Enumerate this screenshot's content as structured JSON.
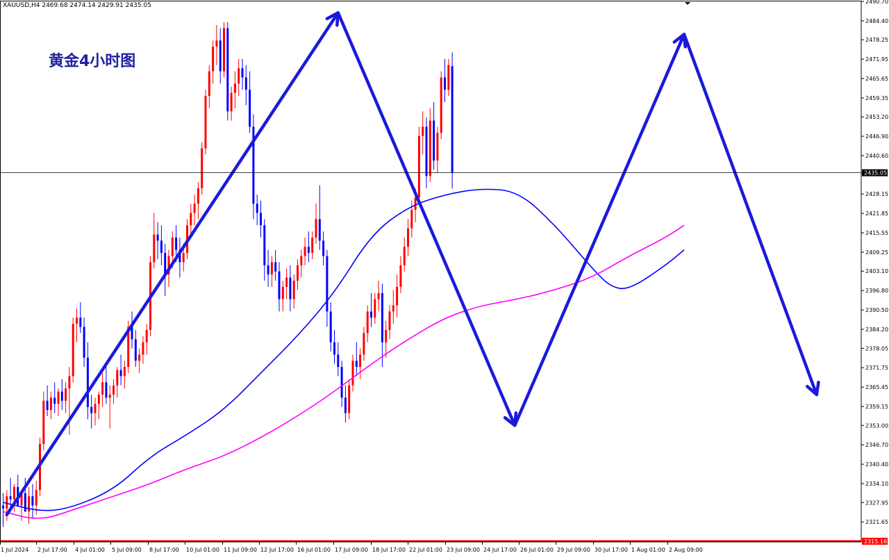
{
  "chart_data": {
    "type": "candlestick",
    "title": "XAUUSD,H4  2469.68 2474.14 2429.91 2435.05",
    "annotation": "黄金4小时图",
    "current_price_label": "2435.05",
    "bottom_price_label": "2315.16",
    "ylim": [
      2315.16,
      2490.7
    ],
    "y_ticks": [
      "2490.70",
      "2484.40",
      "2478.25",
      "2471.95",
      "2465.65",
      "2459.35",
      "2453.20",
      "2446.90",
      "2440.60",
      "2435.05",
      "2428.15",
      "2421.85",
      "2415.55",
      "2409.25",
      "2403.10",
      "2396.80",
      "2390.50",
      "2384.20",
      "2378.05",
      "2371.75",
      "2365.45",
      "2359.15",
      "2353.00",
      "2346.70",
      "2340.40",
      "2334.10",
      "2327.95",
      "2321.65",
      "2315.16"
    ],
    "x_ticks": [
      "1 Jul 2024",
      "2 Jul 17:00",
      "4 Jul 01:00",
      "5 Jul 09:00",
      "8 Jul 17:00",
      "10 Jul 01:00",
      "11 Jul 09:00",
      "12 Jul 17:00",
      "16 Jul 01:00",
      "17 Jul 09:00",
      "18 Jul 17:00",
      "22 Jul 01:00",
      "23 Jul 09:00",
      "24 Jul 17:00",
      "26 Jul 01:00",
      "29 Jul 09:00",
      "30 Jul 17:00",
      "1 Aug 01:00",
      "2 Aug 09:00"
    ],
    "candles": [
      {
        "o": 2327,
        "h": 2331,
        "l": 2320,
        "c": 2326
      },
      {
        "o": 2326,
        "h": 2332,
        "l": 2322,
        "c": 2330
      },
      {
        "o": 2330,
        "h": 2336,
        "l": 2326,
        "c": 2329
      },
      {
        "o": 2329,
        "h": 2334,
        "l": 2325,
        "c": 2333
      },
      {
        "o": 2333,
        "h": 2337,
        "l": 2328,
        "c": 2327
      },
      {
        "o": 2327,
        "h": 2332,
        "l": 2322,
        "c": 2331
      },
      {
        "o": 2331,
        "h": 2336,
        "l": 2326,
        "c": 2325
      },
      {
        "o": 2325,
        "h": 2333,
        "l": 2321,
        "c": 2330
      },
      {
        "o": 2330,
        "h": 2334,
        "l": 2323,
        "c": 2327
      },
      {
        "o": 2327,
        "h": 2335,
        "l": 2324,
        "c": 2332
      },
      {
        "o": 2332,
        "h": 2349,
        "l": 2330,
        "c": 2347
      },
      {
        "o": 2347,
        "h": 2364,
        "l": 2345,
        "c": 2361
      },
      {
        "o": 2361,
        "h": 2366,
        "l": 2356,
        "c": 2358
      },
      {
        "o": 2358,
        "h": 2364,
        "l": 2355,
        "c": 2362
      },
      {
        "o": 2362,
        "h": 2367,
        "l": 2357,
        "c": 2360
      },
      {
        "o": 2360,
        "h": 2365,
        "l": 2356,
        "c": 2364
      },
      {
        "o": 2364,
        "h": 2368,
        "l": 2358,
        "c": 2361
      },
      {
        "o": 2361,
        "h": 2367,
        "l": 2357,
        "c": 2365
      },
      {
        "o": 2365,
        "h": 2372,
        "l": 2350,
        "c": 2369
      },
      {
        "o": 2369,
        "h": 2388,
        "l": 2367,
        "c": 2386
      },
      {
        "o": 2386,
        "h": 2391,
        "l": 2380,
        "c": 2388
      },
      {
        "o": 2388,
        "h": 2393,
        "l": 2383,
        "c": 2385
      },
      {
        "o": 2385,
        "h": 2388,
        "l": 2372,
        "c": 2375
      },
      {
        "o": 2375,
        "h": 2380,
        "l": 2355,
        "c": 2359
      },
      {
        "o": 2359,
        "h": 2363,
        "l": 2352,
        "c": 2357
      },
      {
        "o": 2357,
        "h": 2362,
        "l": 2353,
        "c": 2360
      },
      {
        "o": 2360,
        "h": 2364,
        "l": 2355,
        "c": 2363
      },
      {
        "o": 2363,
        "h": 2370,
        "l": 2359,
        "c": 2367
      },
      {
        "o": 2367,
        "h": 2372,
        "l": 2360,
        "c": 2362
      },
      {
        "o": 2362,
        "h": 2366,
        "l": 2352,
        "c": 2363
      },
      {
        "o": 2363,
        "h": 2368,
        "l": 2360,
        "c": 2366
      },
      {
        "o": 2366,
        "h": 2372,
        "l": 2362,
        "c": 2371
      },
      {
        "o": 2371,
        "h": 2376,
        "l": 2366,
        "c": 2369
      },
      {
        "o": 2369,
        "h": 2374,
        "l": 2365,
        "c": 2372
      },
      {
        "o": 2372,
        "h": 2387,
        "l": 2370,
        "c": 2385
      },
      {
        "o": 2385,
        "h": 2390,
        "l": 2378,
        "c": 2381
      },
      {
        "o": 2381,
        "h": 2384,
        "l": 2372,
        "c": 2374
      },
      {
        "o": 2374,
        "h": 2378,
        "l": 2370,
        "c": 2376
      },
      {
        "o": 2376,
        "h": 2382,
        "l": 2373,
        "c": 2380
      },
      {
        "o": 2380,
        "h": 2386,
        "l": 2376,
        "c": 2384
      },
      {
        "o": 2384,
        "h": 2408,
        "l": 2382,
        "c": 2406
      },
      {
        "o": 2406,
        "h": 2422,
        "l": 2404,
        "c": 2415
      },
      {
        "o": 2415,
        "h": 2419,
        "l": 2407,
        "c": 2413
      },
      {
        "o": 2413,
        "h": 2418,
        "l": 2405,
        "c": 2409
      },
      {
        "o": 2409,
        "h": 2412,
        "l": 2395,
        "c": 2402
      },
      {
        "o": 2402,
        "h": 2410,
        "l": 2398,
        "c": 2408
      },
      {
        "o": 2408,
        "h": 2416,
        "l": 2404,
        "c": 2414
      },
      {
        "o": 2414,
        "h": 2418,
        "l": 2406,
        "c": 2410
      },
      {
        "o": 2410,
        "h": 2414,
        "l": 2401,
        "c": 2406
      },
      {
        "o": 2406,
        "h": 2412,
        "l": 2403,
        "c": 2409
      },
      {
        "o": 2409,
        "h": 2420,
        "l": 2407,
        "c": 2418
      },
      {
        "o": 2418,
        "h": 2425,
        "l": 2415,
        "c": 2422
      },
      {
        "o": 2422,
        "h": 2428,
        "l": 2418,
        "c": 2425
      },
      {
        "o": 2425,
        "h": 2432,
        "l": 2420,
        "c": 2430
      },
      {
        "o": 2430,
        "h": 2445,
        "l": 2428,
        "c": 2443
      },
      {
        "o": 2443,
        "h": 2462,
        "l": 2441,
        "c": 2460
      },
      {
        "o": 2460,
        "h": 2470,
        "l": 2456,
        "c": 2468
      },
      {
        "o": 2468,
        "h": 2478,
        "l": 2464,
        "c": 2476
      },
      {
        "o": 2476,
        "h": 2483,
        "l": 2470,
        "c": 2478
      },
      {
        "o": 2478,
        "h": 2482,
        "l": 2464,
        "c": 2468
      },
      {
        "o": 2468,
        "h": 2484,
        "l": 2466,
        "c": 2482
      },
      {
        "o": 2482,
        "h": 2484,
        "l": 2452,
        "c": 2455
      },
      {
        "o": 2455,
        "h": 2463,
        "l": 2452,
        "c": 2461
      },
      {
        "o": 2461,
        "h": 2468,
        "l": 2456,
        "c": 2464
      },
      {
        "o": 2464,
        "h": 2472,
        "l": 2460,
        "c": 2469
      },
      {
        "o": 2469,
        "h": 2472,
        "l": 2462,
        "c": 2466
      },
      {
        "o": 2466,
        "h": 2470,
        "l": 2457,
        "c": 2462
      },
      {
        "o": 2462,
        "h": 2468,
        "l": 2448,
        "c": 2450
      },
      {
        "o": 2450,
        "h": 2454,
        "l": 2420,
        "c": 2425
      },
      {
        "o": 2425,
        "h": 2428,
        "l": 2418,
        "c": 2422
      },
      {
        "o": 2422,
        "h": 2426,
        "l": 2414,
        "c": 2418
      },
      {
        "o": 2418,
        "h": 2420,
        "l": 2400,
        "c": 2405
      },
      {
        "o": 2405,
        "h": 2410,
        "l": 2398,
        "c": 2402
      },
      {
        "o": 2402,
        "h": 2408,
        "l": 2398,
        "c": 2406
      },
      {
        "o": 2406,
        "h": 2410,
        "l": 2400,
        "c": 2403
      },
      {
        "o": 2403,
        "h": 2406,
        "l": 2390,
        "c": 2394
      },
      {
        "o": 2394,
        "h": 2400,
        "l": 2390,
        "c": 2398
      },
      {
        "o": 2398,
        "h": 2404,
        "l": 2394,
        "c": 2401
      },
      {
        "o": 2401,
        "h": 2405,
        "l": 2390,
        "c": 2394
      },
      {
        "o": 2394,
        "h": 2402,
        "l": 2391,
        "c": 2400
      },
      {
        "o": 2400,
        "h": 2407,
        "l": 2397,
        "c": 2405
      },
      {
        "o": 2405,
        "h": 2410,
        "l": 2401,
        "c": 2408
      },
      {
        "o": 2408,
        "h": 2414,
        "l": 2405,
        "c": 2411
      },
      {
        "o": 2411,
        "h": 2416,
        "l": 2406,
        "c": 2409
      },
      {
        "o": 2409,
        "h": 2416,
        "l": 2407,
        "c": 2414
      },
      {
        "o": 2414,
        "h": 2425,
        "l": 2412,
        "c": 2420
      },
      {
        "o": 2420,
        "h": 2431,
        "l": 2410,
        "c": 2413
      },
      {
        "o": 2413,
        "h": 2416,
        "l": 2405,
        "c": 2408
      },
      {
        "o": 2408,
        "h": 2410,
        "l": 2385,
        "c": 2390
      },
      {
        "o": 2390,
        "h": 2393,
        "l": 2377,
        "c": 2380
      },
      {
        "o": 2380,
        "h": 2384,
        "l": 2373,
        "c": 2376
      },
      {
        "o": 2376,
        "h": 2380,
        "l": 2369,
        "c": 2372
      },
      {
        "o": 2372,
        "h": 2374,
        "l": 2359,
        "c": 2362
      },
      {
        "o": 2362,
        "h": 2366,
        "l": 2354,
        "c": 2357
      },
      {
        "o": 2357,
        "h": 2368,
        "l": 2355,
        "c": 2366
      },
      {
        "o": 2366,
        "h": 2376,
        "l": 2364,
        "c": 2374
      },
      {
        "o": 2374,
        "h": 2380,
        "l": 2369,
        "c": 2372
      },
      {
        "o": 2372,
        "h": 2378,
        "l": 2368,
        "c": 2376
      },
      {
        "o": 2376,
        "h": 2385,
        "l": 2374,
        "c": 2383
      },
      {
        "o": 2383,
        "h": 2392,
        "l": 2380,
        "c": 2390
      },
      {
        "o": 2390,
        "h": 2396,
        "l": 2385,
        "c": 2388
      },
      {
        "o": 2388,
        "h": 2396,
        "l": 2386,
        "c": 2394
      },
      {
        "o": 2394,
        "h": 2400,
        "l": 2390,
        "c": 2396
      },
      {
        "o": 2396,
        "h": 2399,
        "l": 2372,
        "c": 2380
      },
      {
        "o": 2380,
        "h": 2387,
        "l": 2375,
        "c": 2384
      },
      {
        "o": 2384,
        "h": 2392,
        "l": 2381,
        "c": 2390
      },
      {
        "o": 2390,
        "h": 2397,
        "l": 2386,
        "c": 2392
      },
      {
        "o": 2392,
        "h": 2402,
        "l": 2388,
        "c": 2398
      },
      {
        "o": 2398,
        "h": 2408,
        "l": 2396,
        "c": 2405
      },
      {
        "o": 2405,
        "h": 2414,
        "l": 2403,
        "c": 2411
      },
      {
        "o": 2411,
        "h": 2420,
        "l": 2408,
        "c": 2417
      },
      {
        "o": 2417,
        "h": 2426,
        "l": 2414,
        "c": 2423
      },
      {
        "o": 2423,
        "h": 2430,
        "l": 2419,
        "c": 2427
      },
      {
        "o": 2427,
        "h": 2450,
        "l": 2425,
        "c": 2447
      },
      {
        "o": 2447,
        "h": 2455,
        "l": 2441,
        "c": 2450
      },
      {
        "o": 2450,
        "h": 2453,
        "l": 2430,
        "c": 2434
      },
      {
        "o": 2434,
        "h": 2456,
        "l": 2432,
        "c": 2452
      },
      {
        "o": 2452,
        "h": 2458,
        "l": 2436,
        "c": 2439
      },
      {
        "o": 2439,
        "h": 2450,
        "l": 2435,
        "c": 2448
      },
      {
        "o": 2448,
        "h": 2468,
        "l": 2446,
        "c": 2466
      },
      {
        "o": 2466,
        "h": 2472,
        "l": 2458,
        "c": 2462
      },
      {
        "o": 2462,
        "h": 2472,
        "l": 2460,
        "c": 2470
      },
      {
        "o": 2469.68,
        "h": 2474.14,
        "l": 2429.91,
        "c": 2435.05
      }
    ],
    "moving_averages": [
      {
        "name": "",
        "color": "#0000ff",
        "values": [
          [
            0,
            2328
          ],
          [
            10,
            2325
          ],
          [
            18,
            2326
          ],
          [
            30,
            2332
          ],
          [
            40,
            2343
          ],
          [
            50,
            2350
          ],
          [
            60,
            2358
          ],
          [
            70,
            2370
          ],
          [
            80,
            2382
          ],
          [
            90,
            2396
          ],
          [
            100,
            2415
          ],
          [
            110,
            2424
          ],
          [
            120,
            2428
          ],
          [
            130,
            2430
          ],
          [
            140,
            2429
          ],
          [
            150,
            2418
          ],
          [
            160,
            2404
          ],
          [
            165,
            2398
          ],
          [
            170,
            2397
          ],
          [
            180,
            2405
          ],
          [
            185,
            2410
          ]
        ]
      },
      {
        "name": "",
        "color": "#ff00ff",
        "values": [
          [
            0,
            2325
          ],
          [
            10,
            2322
          ],
          [
            20,
            2326
          ],
          [
            30,
            2330
          ],
          [
            40,
            2334
          ],
          [
            50,
            2339
          ],
          [
            60,
            2343
          ],
          [
            70,
            2349
          ],
          [
            80,
            2356
          ],
          [
            90,
            2364
          ],
          [
            100,
            2373
          ],
          [
            110,
            2381
          ],
          [
            120,
            2388
          ],
          [
            130,
            2392
          ],
          [
            140,
            2394
          ],
          [
            150,
            2397
          ],
          [
            160,
            2401
          ],
          [
            170,
            2408
          ],
          [
            180,
            2414
          ],
          [
            185,
            2418
          ]
        ]
      }
    ],
    "trend_path": [
      [
        1,
        2324
      ],
      [
        91,
        2487
      ],
      [
        139,
        2353
      ],
      [
        185,
        2480
      ],
      [
        221,
        2363
      ]
    ],
    "colors": {
      "bull": "#ff0000",
      "bear": "#0000ff",
      "arrow": "#1a1adb"
    },
    "grid": false
  }
}
